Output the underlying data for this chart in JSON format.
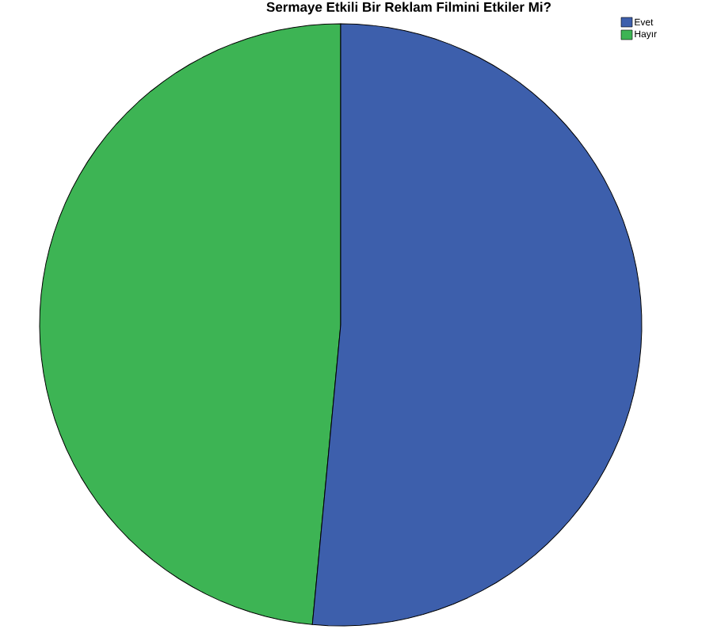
{
  "chart_data": {
    "type": "pie",
    "title": "Sermaye Etkili Bir Reklam Filmini Etkiler Mi?",
    "categories": [
      "Evet",
      "Hayır"
    ],
    "values": [
      51.5,
      48.5
    ],
    "colors": [
      "#3d5fac",
      "#3db454"
    ],
    "legend": "top right"
  }
}
